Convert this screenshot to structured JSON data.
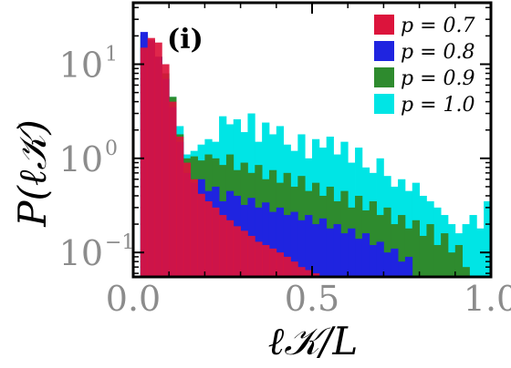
{
  "chart_data": {
    "type": "histogram",
    "panel_label": "(i)",
    "xlabel": "ℓ𝒦/L",
    "ylabel": "P(ℓ𝒦)",
    "xscale": "linear",
    "yscale": "log",
    "xlim": [
      0.0,
      1.0
    ],
    "ylim": [
      0.055,
      45
    ],
    "xticks": [
      {
        "value": 0.0,
        "label": "0.0"
      },
      {
        "value": 0.5,
        "label": "0.5"
      },
      {
        "value": 1.0,
        "label": "1.0"
      }
    ],
    "yticks": [
      {
        "value": 0.1,
        "base": "10",
        "exp": "−1"
      },
      {
        "value": 1,
        "base": "10",
        "exp": "0"
      },
      {
        "value": 10,
        "base": "10",
        "exp": "1"
      }
    ],
    "legend_position": "top-right",
    "bin_width": 0.02,
    "series": [
      {
        "name": "p = 1.0",
        "color": "#00e5e5",
        "bins": [
          [
            0.02,
            20
          ],
          [
            0.04,
            18
          ],
          [
            0.06,
            12
          ],
          [
            0.08,
            8
          ],
          [
            0.1,
            4.5
          ],
          [
            0.12,
            2.2
          ],
          [
            0.14,
            1.1
          ],
          [
            0.16,
            1.2
          ],
          [
            0.18,
            1.4
          ],
          [
            0.2,
            1.6
          ],
          [
            0.22,
            1.5
          ],
          [
            0.24,
            2.8
          ],
          [
            0.26,
            2.3
          ],
          [
            0.28,
            2.6
          ],
          [
            0.3,
            1.9
          ],
          [
            0.32,
            3.0
          ],
          [
            0.34,
            1.5
          ],
          [
            0.36,
            2.4
          ],
          [
            0.38,
            1.8
          ],
          [
            0.4,
            2.2
          ],
          [
            0.42,
            1.4
          ],
          [
            0.44,
            1.2
          ],
          [
            0.46,
            1.8
          ],
          [
            0.48,
            1.0
          ],
          [
            0.5,
            1.6
          ],
          [
            0.52,
            1.3
          ],
          [
            0.54,
            1.7
          ],
          [
            0.56,
            1.1
          ],
          [
            0.58,
            1.5
          ],
          [
            0.6,
            0.9
          ],
          [
            0.62,
            1.3
          ],
          [
            0.64,
            0.8
          ],
          [
            0.66,
            0.7
          ],
          [
            0.68,
            1.0
          ],
          [
            0.7,
            0.65
          ],
          [
            0.72,
            0.5
          ],
          [
            0.74,
            0.6
          ],
          [
            0.76,
            0.45
          ],
          [
            0.78,
            0.55
          ],
          [
            0.8,
            0.4
          ],
          [
            0.82,
            0.35
          ],
          [
            0.84,
            0.3
          ],
          [
            0.86,
            0.25
          ],
          [
            0.88,
            0.2
          ],
          [
            0.9,
            0.16
          ],
          [
            0.92,
            0.2
          ],
          [
            0.94,
            0.25
          ],
          [
            0.96,
            0.18
          ],
          [
            0.98,
            0.35
          ]
        ]
      },
      {
        "name": "p = 0.9",
        "color": "#2e8b2e",
        "bins": [
          [
            0.02,
            20
          ],
          [
            0.04,
            18
          ],
          [
            0.06,
            12
          ],
          [
            0.08,
            8
          ],
          [
            0.1,
            4.5
          ],
          [
            0.12,
            1.8
          ],
          [
            0.14,
            1.0
          ],
          [
            0.16,
            1.05
          ],
          [
            0.18,
            0.95
          ],
          [
            0.2,
            1.1
          ],
          [
            0.22,
            1.0
          ],
          [
            0.24,
            0.85
          ],
          [
            0.26,
            1.1
          ],
          [
            0.28,
            0.75
          ],
          [
            0.3,
            0.9
          ],
          [
            0.32,
            0.7
          ],
          [
            0.34,
            0.85
          ],
          [
            0.36,
            0.6
          ],
          [
            0.38,
            0.75
          ],
          [
            0.4,
            0.55
          ],
          [
            0.42,
            0.7
          ],
          [
            0.44,
            0.5
          ],
          [
            0.46,
            0.65
          ],
          [
            0.48,
            0.45
          ],
          [
            0.5,
            0.55
          ],
          [
            0.52,
            0.4
          ],
          [
            0.54,
            0.5
          ],
          [
            0.56,
            0.35
          ],
          [
            0.58,
            0.45
          ],
          [
            0.6,
            0.3
          ],
          [
            0.62,
            0.4
          ],
          [
            0.64,
            0.28
          ],
          [
            0.66,
            0.35
          ],
          [
            0.68,
            0.25
          ],
          [
            0.7,
            0.3
          ],
          [
            0.72,
            0.2
          ],
          [
            0.74,
            0.25
          ],
          [
            0.76,
            0.18
          ],
          [
            0.78,
            0.22
          ],
          [
            0.8,
            0.15
          ],
          [
            0.82,
            0.2
          ],
          [
            0.84,
            0.12
          ],
          [
            0.86,
            0.16
          ],
          [
            0.88,
            0.1
          ],
          [
            0.9,
            0.12
          ],
          [
            0.92,
            0.07
          ]
        ]
      },
      {
        "name": "p = 0.8",
        "color": "#1f24e0",
        "bins": [
          [
            0.02,
            22
          ],
          [
            0.04,
            18
          ],
          [
            0.06,
            12
          ],
          [
            0.08,
            7
          ],
          [
            0.1,
            3.5
          ],
          [
            0.12,
            1.5
          ],
          [
            0.14,
            0.7
          ],
          [
            0.16,
            0.55
          ],
          [
            0.18,
            0.6
          ],
          [
            0.2,
            0.45
          ],
          [
            0.22,
            0.5
          ],
          [
            0.24,
            0.35
          ],
          [
            0.26,
            0.45
          ],
          [
            0.28,
            0.4
          ],
          [
            0.3,
            0.32
          ],
          [
            0.32,
            0.38
          ],
          [
            0.34,
            0.3
          ],
          [
            0.36,
            0.34
          ],
          [
            0.38,
            0.27
          ],
          [
            0.4,
            0.3
          ],
          [
            0.42,
            0.25
          ],
          [
            0.44,
            0.27
          ],
          [
            0.46,
            0.22
          ],
          [
            0.48,
            0.25
          ],
          [
            0.5,
            0.2
          ],
          [
            0.52,
            0.23
          ],
          [
            0.54,
            0.18
          ],
          [
            0.56,
            0.2
          ],
          [
            0.58,
            0.16
          ],
          [
            0.6,
            0.18
          ],
          [
            0.62,
            0.14
          ],
          [
            0.64,
            0.16
          ],
          [
            0.66,
            0.12
          ],
          [
            0.68,
            0.13
          ],
          [
            0.7,
            0.1
          ],
          [
            0.72,
            0.11
          ],
          [
            0.74,
            0.08
          ],
          [
            0.76,
            0.09
          ]
        ]
      },
      {
        "name": "p = 0.7",
        "color": "#dc143c",
        "bins": [
          [
            0.02,
            15
          ],
          [
            0.04,
            19
          ],
          [
            0.06,
            17
          ],
          [
            0.08,
            10
          ],
          [
            0.1,
            4
          ],
          [
            0.12,
            1.7
          ],
          [
            0.14,
            0.9
          ],
          [
            0.16,
            0.6
          ],
          [
            0.18,
            0.42
          ],
          [
            0.2,
            0.35
          ],
          [
            0.22,
            0.3
          ],
          [
            0.24,
            0.25
          ],
          [
            0.26,
            0.22
          ],
          [
            0.28,
            0.19
          ],
          [
            0.3,
            0.17
          ],
          [
            0.32,
            0.15
          ],
          [
            0.34,
            0.13
          ],
          [
            0.36,
            0.12
          ],
          [
            0.38,
            0.11
          ],
          [
            0.4,
            0.1
          ],
          [
            0.42,
            0.09
          ],
          [
            0.44,
            0.08
          ],
          [
            0.46,
            0.07
          ],
          [
            0.48,
            0.065
          ],
          [
            0.5,
            0.06
          ]
        ]
      }
    ]
  }
}
